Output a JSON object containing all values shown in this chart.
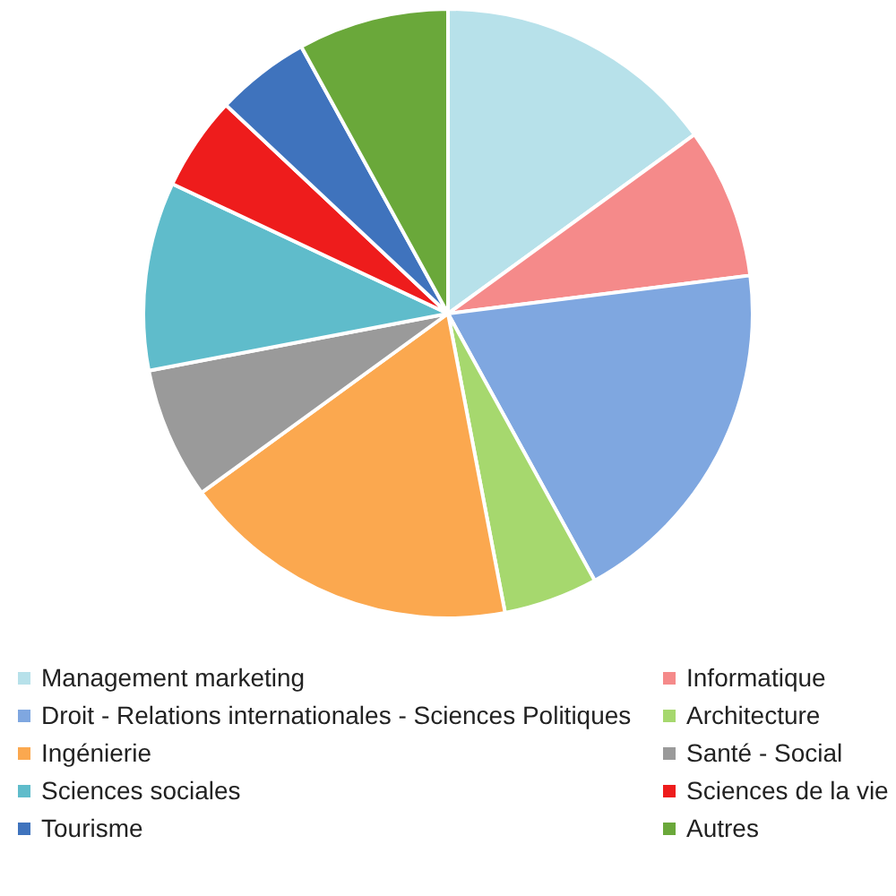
{
  "chart_data": {
    "type": "pie",
    "legend": "bottom",
    "categories": [
      "Management marketing",
      "Informatique",
      "Droit - Relations internationales - Sciences Politiques",
      "Architecture",
      "Ingénierie",
      "Santé - Social",
      "Sciences sociales",
      "Sciences de la vie",
      "Tourisme",
      "Autres"
    ],
    "values": [
      15,
      8,
      19,
      5,
      18,
      7,
      10,
      5,
      5,
      8
    ],
    "colors": [
      "#b7e1ea",
      "#f58a8a",
      "#7fa7e0",
      "#a6d86e",
      "#fba84f",
      "#9a9a9a",
      "#5fbccb",
      "#ee1c1c",
      "#3f73bd",
      "#6aa83a"
    ]
  }
}
